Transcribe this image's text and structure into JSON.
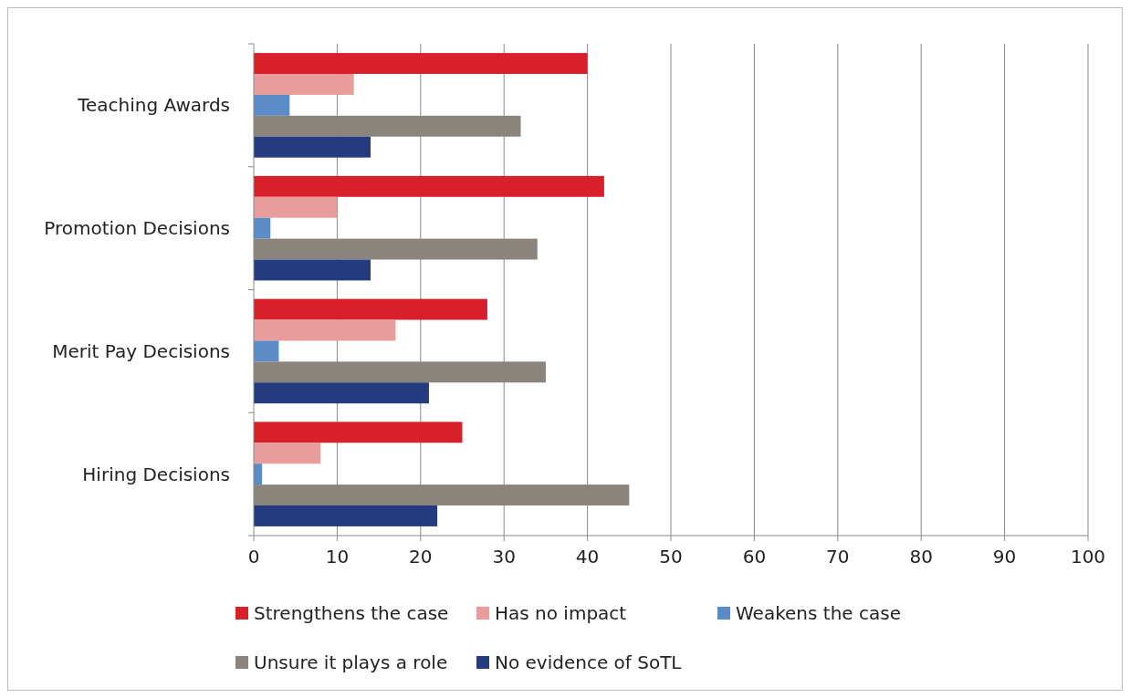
{
  "chart_data": {
    "type": "bar",
    "orientation": "horizontal",
    "categories": [
      "Teaching Awards",
      "Promotion Decisions",
      "Merit Pay Decisions",
      "Hiring Decisions"
    ],
    "series": [
      {
        "name": "Strengthens the case",
        "color": "#d7202a",
        "values": [
          40,
          42,
          28,
          25
        ]
      },
      {
        "name": "Has no impact",
        "color": "#e89c9b",
        "values": [
          12,
          10,
          17,
          8
        ]
      },
      {
        "name": "Weakens the case",
        "color": "#5b8cc8",
        "values": [
          4.3,
          2,
          3,
          1
        ]
      },
      {
        "name": "Unsure it plays a role",
        "color": "#8a847d",
        "values": [
          32,
          34,
          35,
          45
        ]
      },
      {
        "name": "No evidence of SoTL",
        "color": "#253b80",
        "values": [
          14,
          14,
          21,
          22
        ]
      }
    ],
    "xlim": [
      0,
      100
    ],
    "xticks": [
      0,
      10,
      20,
      30,
      40,
      50,
      60,
      70,
      80,
      90,
      100
    ],
    "grid": "x",
    "legend": "bottom"
  }
}
